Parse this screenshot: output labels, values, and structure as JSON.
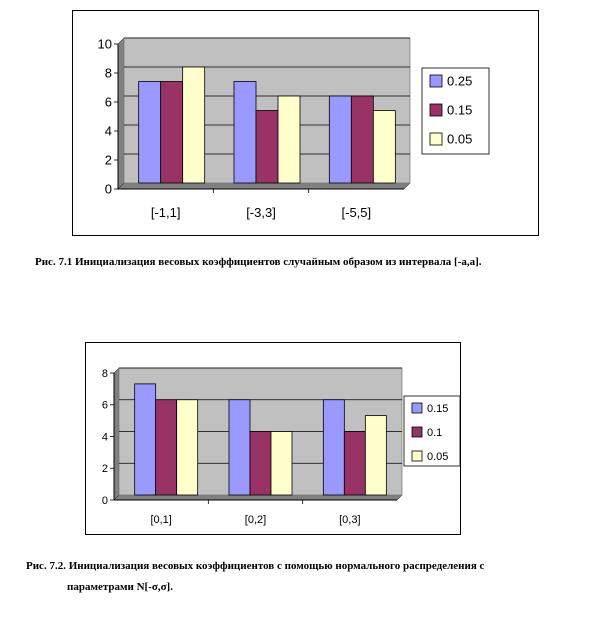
{
  "chart_data": [
    {
      "type": "bar",
      "categories": [
        "[-1,1]",
        "[-3,3]",
        "[-5,5]"
      ],
      "series": [
        {
          "name": "0.25",
          "values": [
            7,
            7,
            6
          ]
        },
        {
          "name": "0.15",
          "values": [
            7,
            5,
            6
          ]
        },
        {
          "name": "0.05",
          "values": [
            8,
            6,
            5
          ]
        }
      ],
      "ylim": [
        0,
        10
      ],
      "yticks": [
        0,
        2,
        4,
        6,
        8,
        10
      ],
      "grid": true,
      "legend": "right"
    },
    {
      "type": "bar",
      "categories": [
        "[0,1]",
        "[0,2]",
        "[0,3]"
      ],
      "series": [
        {
          "name": "0.15",
          "values": [
            7,
            6,
            6
          ]
        },
        {
          "name": "0.1",
          "values": [
            6,
            4,
            4
          ]
        },
        {
          "name": "0.05",
          "values": [
            6,
            4,
            5
          ]
        }
      ],
      "ylim": [
        0,
        8
      ],
      "yticks": [
        0,
        2,
        4,
        6,
        8
      ],
      "grid": true,
      "legend": "right"
    }
  ],
  "colors": {
    "plot_bg": "#c0c0c0",
    "series": [
      "#9999ff",
      "#993366",
      "#ffffcc"
    ]
  },
  "captions": {
    "fig1": "Рис. 7.1 Инициализация весовых коэффициентов случайным образом из интервала [-a,a].",
    "fig2_line1": "Рис. 7.2. Инициализация весовых коэффициентов с помощью нормального распределения с",
    "fig2_line2": "параметрами N[-σ,σ]."
  }
}
